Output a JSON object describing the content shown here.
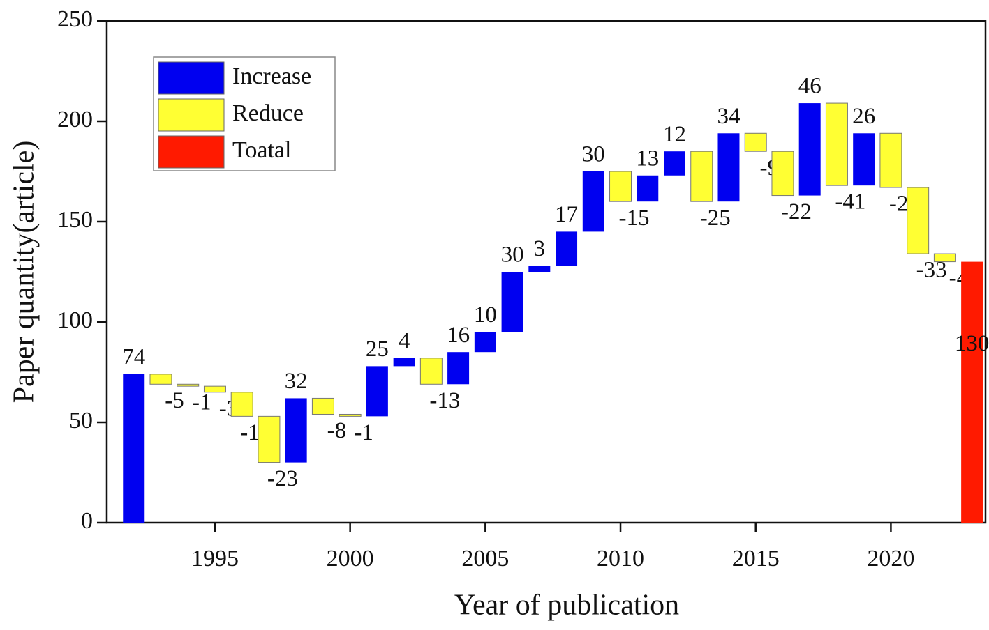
{
  "chart_data": {
    "type": "waterfall",
    "xlabel": "Year of publication",
    "ylabel": "Paper quantity(article)",
    "x": [
      1992,
      1993,
      1994,
      1995,
      1996,
      1997,
      1998,
      1999,
      2000,
      2001,
      2002,
      2003,
      2004,
      2005,
      2006,
      2007,
      2008,
      2009,
      2010,
      2011,
      2012,
      2013,
      2014,
      2015,
      2016,
      2017,
      2018,
      2019,
      2020,
      2021,
      2022
    ],
    "values": [
      74,
      -5,
      -1,
      -3,
      -12,
      -23,
      32,
      -8,
      -1,
      25,
      4,
      -13,
      16,
      10,
      30,
      3,
      17,
      30,
      -15,
      13,
      12,
      -25,
      34,
      -9,
      -22,
      46,
      -41,
      26,
      -27,
      -33,
      -4
    ],
    "total": {
      "x": 2023,
      "value": 130
    },
    "legend": [
      {
        "name": "Increase",
        "color": "#0000f0"
      },
      {
        "name": "Reduce",
        "color": "#ffff33"
      },
      {
        "name": "Toatal",
        "color": "#ff1a00"
      }
    ],
    "xlim": [
      1991,
      2023.5
    ],
    "xticks": [
      1995,
      2000,
      2005,
      2010,
      2015,
      2020
    ],
    "ylim": [
      0,
      250
    ],
    "yticks": [
      0,
      50,
      100,
      150,
      200,
      250
    ]
  }
}
